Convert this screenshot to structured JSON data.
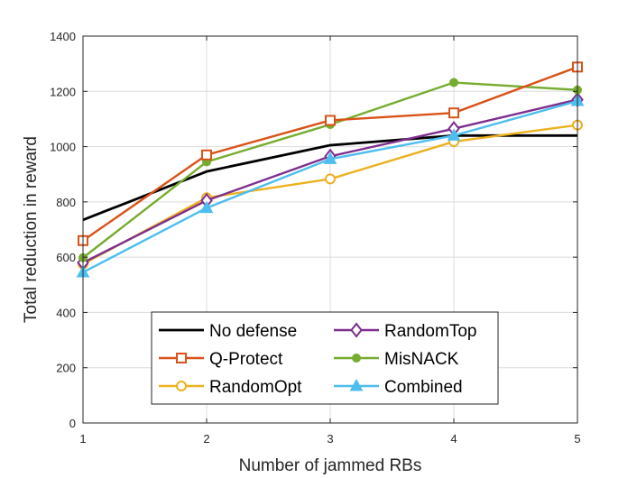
{
  "chart_data": {
    "type": "line",
    "title": "",
    "xlabel": "Number of jammed RBs",
    "ylabel": "Total reduction in reward",
    "x": [
      1,
      2,
      3,
      4,
      5
    ],
    "xlim": [
      1,
      5
    ],
    "ylim": [
      0,
      1400
    ],
    "xticks": [
      1,
      2,
      3,
      4,
      5
    ],
    "yticks": [
      0,
      200,
      400,
      600,
      800,
      1000,
      1200,
      1400
    ],
    "grid": true,
    "legend_position": "bottom-center",
    "series": [
      {
        "name": "No defense",
        "color": "#000000",
        "marker": "none",
        "values": [
          735,
          910,
          1005,
          1040,
          1040
        ]
      },
      {
        "name": "RandomTop",
        "color": "#7E2F8E",
        "marker": "diamond",
        "values": [
          580,
          805,
          965,
          1065,
          1170
        ]
      },
      {
        "name": "Q-Protect",
        "color": "#D95319",
        "marker": "square",
        "values": [
          660,
          970,
          1095,
          1122,
          1288
        ]
      },
      {
        "name": "MisNACK",
        "color": "#77AC30",
        "marker": "circle-filled",
        "values": [
          598,
          945,
          1080,
          1232,
          1205
        ]
      },
      {
        "name": "RandomOpt",
        "color": "#EDB120",
        "marker": "circle",
        "values": [
          575,
          815,
          883,
          1018,
          1078
        ]
      },
      {
        "name": "Combined",
        "color": "#4DBEEE",
        "marker": "triangle",
        "values": [
          545,
          778,
          955,
          1040,
          1165
        ]
      }
    ]
  }
}
